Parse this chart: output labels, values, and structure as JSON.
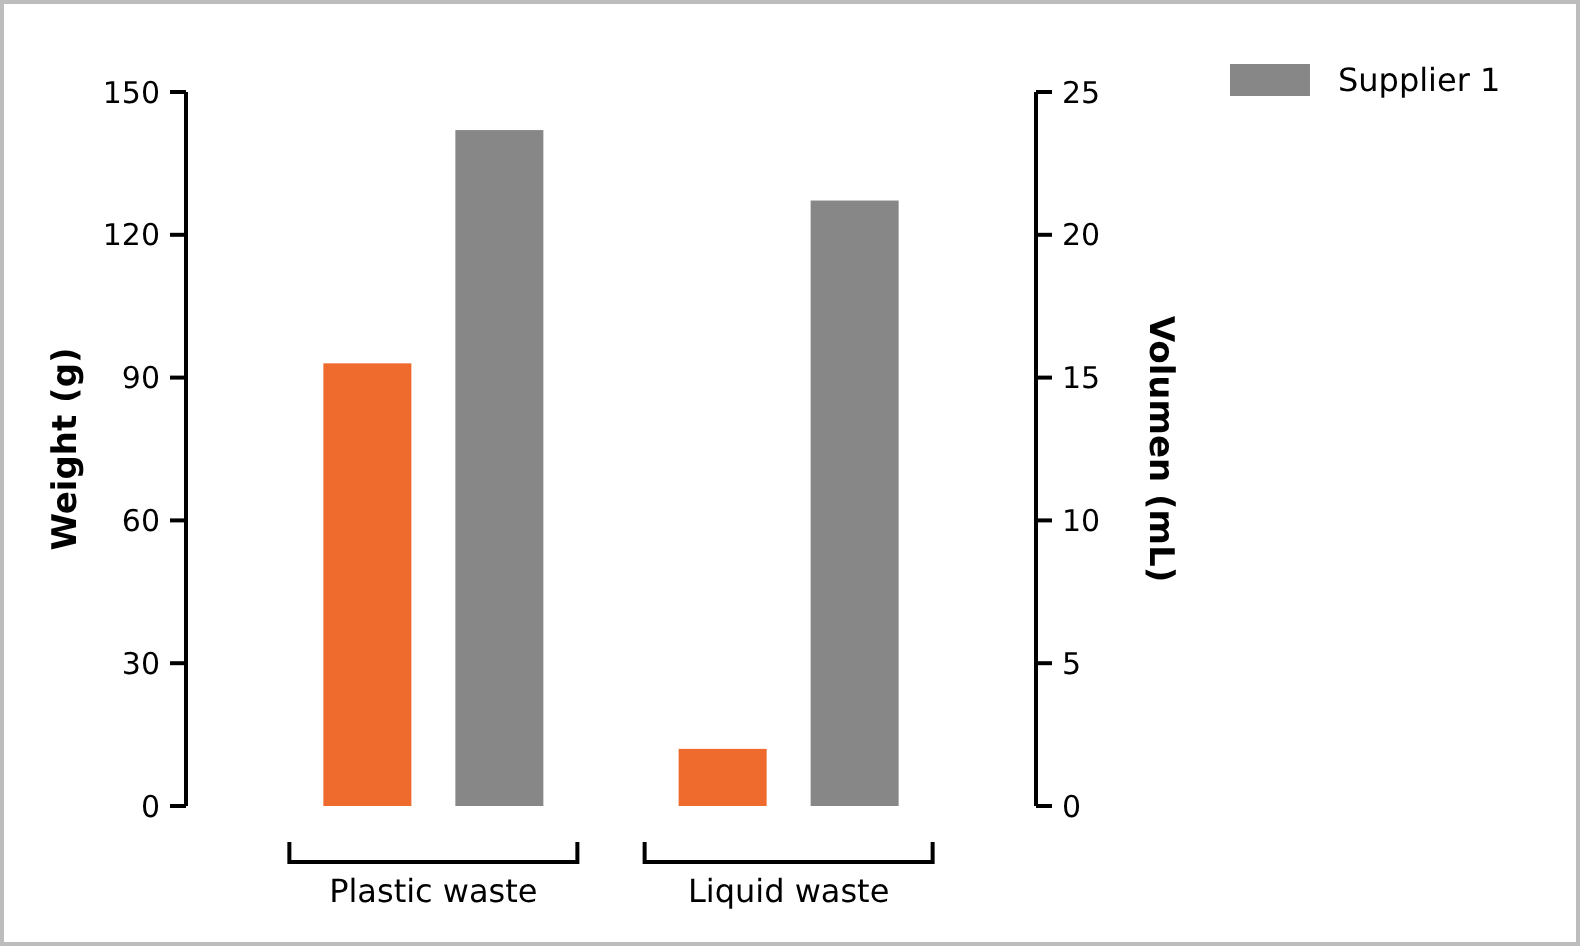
{
  "chart_data": {
    "type": "bar",
    "categories": [
      "Plastic waste",
      "Liquid waste"
    ],
    "series": [
      {
        "color": "#ee6b2d",
        "values": [
          93,
          null
        ]
      },
      {
        "name": "Supplier 1",
        "color": "#878787",
        "values": [
          142,
          null
        ]
      },
      {
        "color": "#ee6b2d",
        "values": [
          null,
          2
        ],
        "axis": "y2"
      },
      {
        "color": "#878787",
        "values": [
          null,
          21.2
        ],
        "axis": "y2"
      }
    ],
    "ylabel": "Weight (g)",
    "y2label": "Volumen (mL)",
    "ylim": [
      0,
      150
    ],
    "yticks": [
      0,
      30,
      60,
      90,
      120,
      150
    ],
    "y2lim": [
      0,
      25
    ],
    "y2ticks": [
      0,
      5,
      10,
      15,
      20,
      25
    ],
    "legend": "top right",
    "grid": false
  }
}
